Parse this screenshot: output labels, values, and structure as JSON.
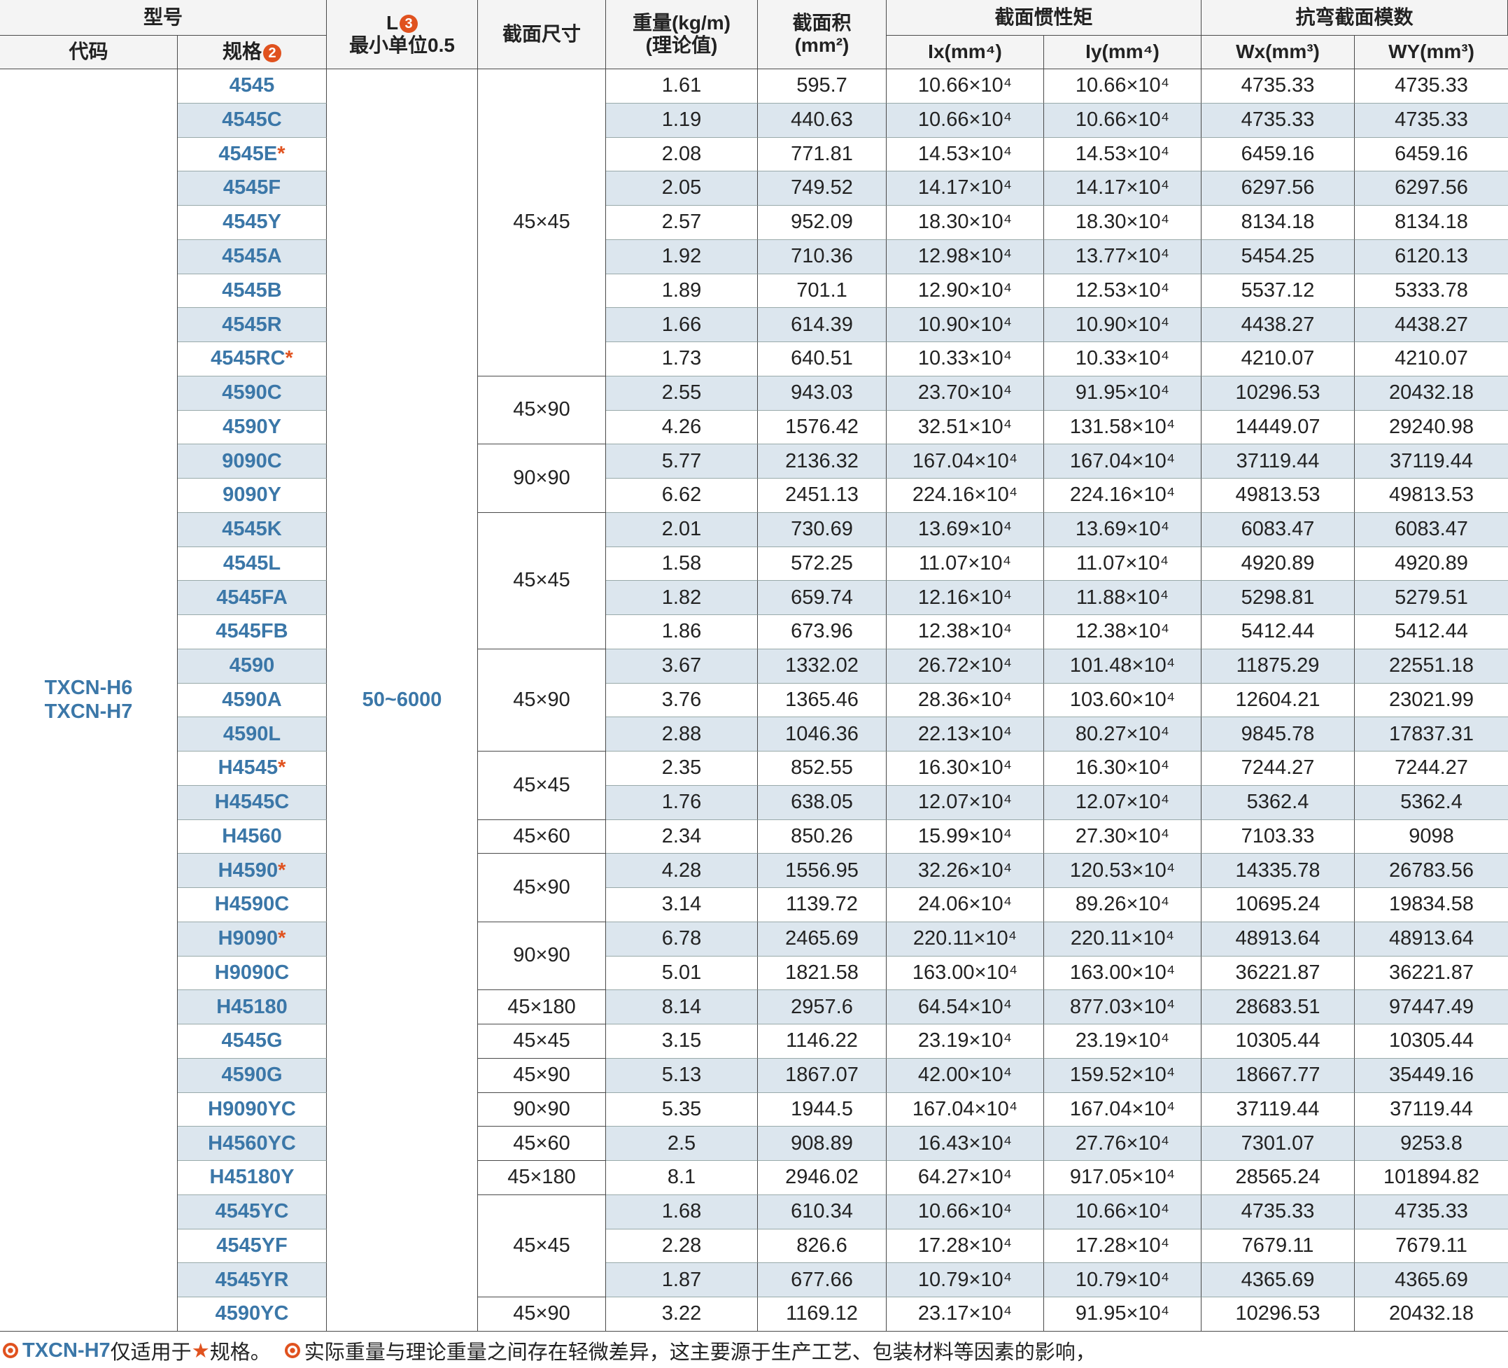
{
  "header": {
    "model": "型号",
    "code": "代码",
    "spec": "规格",
    "spec_badge": "2",
    "length": "L",
    "length_badge": "3",
    "length_note": "最小单位0.5",
    "size": "截面尺寸",
    "weight": "重量(kg/m)",
    "weight_note": "(理论值)",
    "area": "截面积",
    "area_unit": "(mm²)",
    "inertia": "截面惯性矩",
    "ix": "Ix(mm⁴)",
    "iy": "Iy(mm⁴)",
    "modulus": "抗弯截面模数",
    "wx": "Wx(mm³)",
    "wy": "WY(mm³)"
  },
  "codes": [
    "TXCN-H6",
    "TXCN-H7"
  ],
  "length": "50~6000",
  "size_groups": [
    {
      "size": "45×45",
      "span": 9
    },
    {
      "size": "45×90",
      "span": 2
    },
    {
      "size": "90×90",
      "span": 2
    },
    {
      "size": "45×45",
      "span": 4
    },
    {
      "size": "45×90",
      "span": 3
    },
    {
      "size": "45×45",
      "span": 2
    },
    {
      "size": "45×60",
      "span": 1
    },
    {
      "size": "45×90",
      "span": 2
    },
    {
      "size": "90×90",
      "span": 2
    },
    {
      "size": "45×180",
      "span": 1
    },
    {
      "size": "45×45",
      "span": 1
    },
    {
      "size": "45×90",
      "span": 1
    },
    {
      "size": "90×90",
      "span": 1
    },
    {
      "size": "45×60",
      "span": 1
    },
    {
      "size": "45×180",
      "span": 1
    },
    {
      "size": "45×45",
      "span": 3
    },
    {
      "size": "45×90",
      "span": 1
    }
  ],
  "rows": [
    {
      "spec": "4545",
      "values": [
        1.61,
        595.7,
        "10.66×10⁴",
        "10.66×10⁴",
        4735.33,
        4735.33
      ]
    },
    {
      "spec": "4545C",
      "values": [
        1.19,
        440.63,
        "10.66×10⁴",
        "10.66×10⁴",
        4735.33,
        4735.33
      ]
    },
    {
      "spec": "4545E",
      "mark": "*",
      "values": [
        2.08,
        771.81,
        "14.53×10⁴",
        "14.53×10⁴",
        6459.16,
        6459.16
      ]
    },
    {
      "spec": "4545F",
      "values": [
        2.05,
        749.52,
        "14.17×10⁴",
        "14.17×10⁴",
        6297.56,
        6297.56
      ]
    },
    {
      "spec": "4545Y",
      "values": [
        2.57,
        952.09,
        "18.30×10⁴",
        "18.30×10⁴",
        8134.18,
        8134.18
      ]
    },
    {
      "spec": "4545A",
      "values": [
        1.92,
        710.36,
        "12.98×10⁴",
        "13.77×10⁴",
        5454.25,
        6120.13
      ]
    },
    {
      "spec": "4545B",
      "values": [
        1.89,
        701.1,
        "12.90×10⁴",
        "12.53×10⁴",
        5537.12,
        5333.78
      ]
    },
    {
      "spec": "4545R",
      "values": [
        1.66,
        614.39,
        "10.90×10⁴",
        "10.90×10⁴",
        4438.27,
        4438.27
      ]
    },
    {
      "spec": "4545RC",
      "mark": "*",
      "values": [
        1.73,
        640.51,
        "10.33×10⁴",
        "10.33×10⁴",
        4210.07,
        4210.07
      ]
    },
    {
      "spec": "4590C",
      "values": [
        2.55,
        943.03,
        "23.70×10⁴",
        "91.95×10⁴",
        10296.53,
        20432.18
      ]
    },
    {
      "spec": "4590Y",
      "values": [
        4.26,
        1576.42,
        "32.51×10⁴",
        "131.58×10⁴",
        14449.07,
        29240.98
      ]
    },
    {
      "spec": "9090C",
      "values": [
        5.77,
        2136.32,
        "167.04×10⁴",
        "167.04×10⁴",
        37119.44,
        37119.44
      ]
    },
    {
      "spec": "9090Y",
      "values": [
        6.62,
        2451.13,
        "224.16×10⁴",
        "224.16×10⁴",
        49813.53,
        49813.53
      ]
    },
    {
      "spec": "4545K",
      "values": [
        2.01,
        730.69,
        "13.69×10⁴",
        "13.69×10⁴",
        6083.47,
        6083.47
      ]
    },
    {
      "spec": "4545L",
      "values": [
        1.58,
        572.25,
        "11.07×10⁴",
        "11.07×10⁴",
        4920.89,
        4920.89
      ]
    },
    {
      "spec": "4545FA",
      "values": [
        1.82,
        659.74,
        "12.16×10⁴",
        "11.88×10⁴",
        5298.81,
        5279.51
      ]
    },
    {
      "spec": "4545FB",
      "values": [
        1.86,
        673.96,
        "12.38×10⁴",
        "12.38×10⁴",
        5412.44,
        5412.44
      ]
    },
    {
      "spec": "4590",
      "values": [
        3.67,
        1332.02,
        "26.72×10⁴",
        "101.48×10⁴",
        11875.29,
        22551.18
      ]
    },
    {
      "spec": "4590A",
      "values": [
        3.76,
        1365.46,
        "28.36×10⁴",
        "103.60×10⁴",
        12604.21,
        23021.99
      ]
    },
    {
      "spec": "4590L",
      "values": [
        2.88,
        1046.36,
        "22.13×10⁴",
        "80.27×10⁴",
        9845.78,
        17837.31
      ]
    },
    {
      "spec": "H4545",
      "mark": "*",
      "values": [
        2.35,
        852.55,
        "16.30×10⁴",
        "16.30×10⁴",
        7244.27,
        7244.27
      ]
    },
    {
      "spec": "H4545C",
      "values": [
        1.76,
        638.05,
        "12.07×10⁴",
        "12.07×10⁴",
        5362.4,
        5362.4
      ]
    },
    {
      "spec": "H4560",
      "values": [
        2.34,
        850.26,
        "15.99×10⁴",
        "27.30×10⁴",
        7103.33,
        9098
      ]
    },
    {
      "spec": "H4590",
      "mark": "*",
      "values": [
        4.28,
        1556.95,
        "32.26×10⁴",
        "120.53×10⁴",
        14335.78,
        26783.56
      ]
    },
    {
      "spec": "H4590C",
      "values": [
        3.14,
        1139.72,
        "24.06×10⁴",
        "89.26×10⁴",
        10695.24,
        19834.58
      ]
    },
    {
      "spec": "H9090",
      "mark": "*",
      "values": [
        6.78,
        2465.69,
        "220.11×10⁴",
        "220.11×10⁴",
        48913.64,
        48913.64
      ]
    },
    {
      "spec": "H9090C",
      "values": [
        5.01,
        1821.58,
        "163.00×10⁴",
        "163.00×10⁴",
        36221.87,
        36221.87
      ]
    },
    {
      "spec": "H45180",
      "values": [
        8.14,
        2957.6,
        "64.54×10⁴",
        "877.03×10⁴",
        28683.51,
        97447.49
      ]
    },
    {
      "spec": "4545G",
      "values": [
        3.15,
        1146.22,
        "23.19×10⁴",
        "23.19×10⁴",
        10305.44,
        10305.44
      ]
    },
    {
      "spec": "4590G",
      "values": [
        5.13,
        1867.07,
        "42.00×10⁴",
        "159.52×10⁴",
        18667.77,
        35449.16
      ]
    },
    {
      "spec": "H9090YC",
      "values": [
        5.35,
        1944.5,
        "167.04×10⁴",
        "167.04×10⁴",
        37119.44,
        37119.44
      ]
    },
    {
      "spec": "H4560YC",
      "values": [
        2.5,
        908.89,
        "16.43×10⁴",
        "27.76×10⁴",
        7301.07,
        9253.8
      ]
    },
    {
      "spec": "H45180Y",
      "values": [
        8.1,
        2946.02,
        "64.27×10⁴",
        "917.05×10⁴",
        28565.24,
        101894.82
      ]
    },
    {
      "spec": "4545YC",
      "values": [
        1.68,
        610.34,
        "10.66×10⁴",
        "10.66×10⁴",
        4735.33,
        4735.33
      ]
    },
    {
      "spec": "4545YF",
      "values": [
        2.28,
        826.6,
        "17.28×10⁴",
        "17.28×10⁴",
        7679.11,
        7679.11
      ]
    },
    {
      "spec": "4545YR",
      "values": [
        1.87,
        677.66,
        "10.79×10⁴",
        "10.79×10⁴",
        4365.69,
        4365.69
      ]
    },
    {
      "spec": "4590YC",
      "values": [
        3.22,
        1169.12,
        "23.17×10⁴",
        "91.95×10⁴",
        10296.53,
        20432.18
      ]
    }
  ],
  "footer": {
    "code": "TXCN-H7",
    "text": "仅适用于",
    "star": "★",
    "tail": "规格。",
    "note": "实际重量与理论重量之间存在轻微差异，这主要源于生产工艺、包装材料等因素的影响，"
  }
}
